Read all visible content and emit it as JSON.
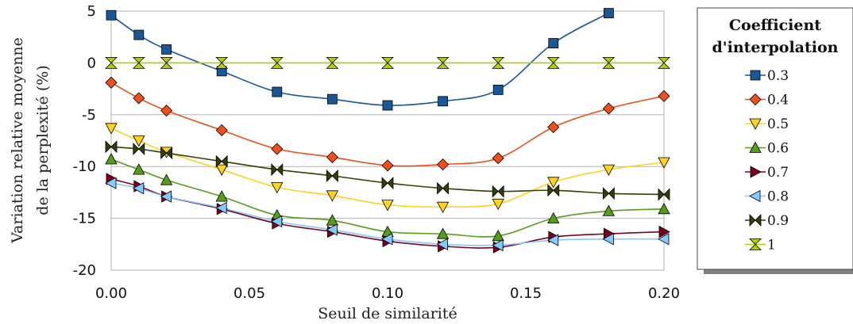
{
  "chart_data": {
    "type": "line",
    "xlabel": "Seuil de similarité",
    "ylabel_line1": "Variation relative moyenne",
    "ylabel_line2": "de la perplexité (%)",
    "xlim": [
      0,
      0.2
    ],
    "ylim": [
      -20,
      5
    ],
    "x_ticks": [
      "0.00",
      "0.05",
      "0.10",
      "0.15",
      "0.20"
    ],
    "y_ticks": [
      "5",
      "0",
      "-5",
      "-10",
      "-15",
      "-20"
    ],
    "grid": "horizontal",
    "legend": {
      "title_line1": "Coefficient",
      "title_line2": "d'interpolation",
      "placement": "right"
    },
    "series": [
      {
        "name": "0.3",
        "color": "#1a5796",
        "marker": "square",
        "x": [
          0,
          0.01,
          0.02,
          0.04,
          0.06,
          0.08,
          0.1,
          0.12,
          0.14,
          0.16,
          0.18
        ],
        "y": [
          4.6,
          2.7,
          1.3,
          -0.8,
          -2.8,
          -3.5,
          -4.1,
          -3.7,
          -2.6,
          1.9,
          4.8
        ]
      },
      {
        "name": "0.4",
        "color": "#ee4f1c",
        "marker": "diamond",
        "x": [
          0,
          0.01,
          0.02,
          0.04,
          0.06,
          0.08,
          0.1,
          0.12,
          0.14,
          0.16,
          0.18,
          0.2
        ],
        "y": [
          -1.9,
          -3.4,
          -4.6,
          -6.5,
          -8.3,
          -9.1,
          -9.9,
          -9.8,
          -9.2,
          -6.2,
          -4.4,
          -3.2
        ]
      },
      {
        "name": "0.5",
        "color": "#ffd320",
        "marker": "triangle-down",
        "x": [
          0,
          0.01,
          0.02,
          0.04,
          0.06,
          0.08,
          0.1,
          0.12,
          0.14,
          0.16,
          0.18,
          0.2
        ],
        "y": [
          -6.3,
          -7.5,
          -8.6,
          -10.3,
          -12.0,
          -12.8,
          -13.7,
          -13.9,
          -13.6,
          -11.5,
          -10.3,
          -9.6
        ]
      },
      {
        "name": "0.6",
        "color": "#579d1c",
        "marker": "triangle-up",
        "x": [
          0,
          0.01,
          0.02,
          0.04,
          0.06,
          0.08,
          0.1,
          0.12,
          0.14,
          0.16,
          0.18,
          0.2
        ],
        "y": [
          -9.3,
          -10.3,
          -11.3,
          -12.9,
          -14.7,
          -15.2,
          -16.3,
          -16.5,
          -16.7,
          -15.0,
          -14.3,
          -14.1
        ]
      },
      {
        "name": "0.7",
        "color": "#7e0021",
        "marker": "triangle-right",
        "x": [
          0,
          0.01,
          0.02,
          0.04,
          0.06,
          0.08,
          0.1,
          0.12,
          0.14,
          0.16,
          0.18,
          0.2
        ],
        "y": [
          -11.2,
          -11.9,
          -12.9,
          -14.1,
          -15.5,
          -16.3,
          -17.2,
          -17.7,
          -17.8,
          -16.8,
          -16.5,
          -16.3
        ]
      },
      {
        "name": "0.8",
        "color": "#83caff",
        "marker": "triangle-left",
        "x": [
          0,
          0.01,
          0.02,
          0.04,
          0.06,
          0.08,
          0.1,
          0.12,
          0.14,
          0.16,
          0.18,
          0.2
        ],
        "y": [
          -11.6,
          -12.1,
          -12.9,
          -14.0,
          -15.3,
          -16.1,
          -17.0,
          -17.5,
          -17.6,
          -17.1,
          -17.0,
          -17.0
        ]
      },
      {
        "name": "0.9",
        "color": "#314004",
        "marker": "bowtie",
        "x": [
          0,
          0.01,
          0.02,
          0.04,
          0.06,
          0.08,
          0.1,
          0.12,
          0.14,
          0.16,
          0.18,
          0.2
        ],
        "y": [
          -8.1,
          -8.3,
          -8.7,
          -9.5,
          -10.3,
          -10.9,
          -11.6,
          -12.1,
          -12.4,
          -12.3,
          -12.6,
          -12.7
        ]
      },
      {
        "name": "1",
        "color": "#aecf00",
        "marker": "hourglass",
        "x": [
          0,
          0.01,
          0.02,
          0.04,
          0.06,
          0.08,
          0.1,
          0.12,
          0.14,
          0.16,
          0.18,
          0.2
        ],
        "y": [
          0,
          0,
          0,
          0,
          0,
          0,
          0,
          0,
          0,
          0,
          0,
          0
        ]
      }
    ]
  }
}
